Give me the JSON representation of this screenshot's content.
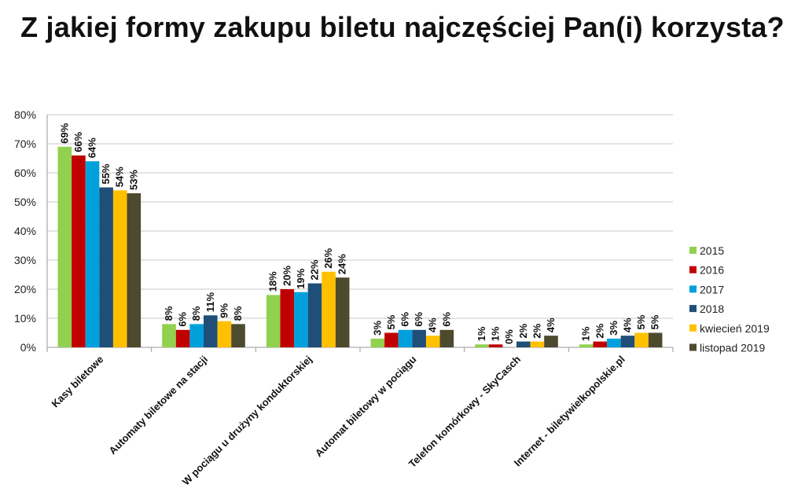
{
  "chart_data": {
    "type": "bar",
    "title": "Z jakiej formy zakupu biletu najczęściej Pan(i) korzysta?",
    "xlabel": "",
    "ylabel": "",
    "ylim": [
      0,
      80
    ],
    "y_unit": "%",
    "y_ticks": [
      "0%",
      "10%",
      "20%",
      "30%",
      "40%",
      "50%",
      "60%",
      "70%",
      "80%"
    ],
    "grid": true,
    "legend_position": "right",
    "categories": [
      "Kasy biletowe",
      "Automaty biletowe na stacji",
      "W pociągu u drużyny konduktorskiej",
      "Automat biletowy w pociągu",
      "Telefon komórkowy - SkyCasch",
      "Internet - biletywielkopolskie.pl"
    ],
    "series": [
      {
        "name": "2015",
        "color": "#92D050",
        "values": [
          69,
          8,
          18,
          3,
          1,
          1
        ]
      },
      {
        "name": "2016",
        "color": "#C00000",
        "values": [
          66,
          6,
          20,
          5,
          1,
          2
        ]
      },
      {
        "name": "2017",
        "color": "#00A0DC",
        "values": [
          64,
          8,
          19,
          6,
          0,
          3
        ]
      },
      {
        "name": "2018",
        "color": "#1F4E79",
        "values": [
          55,
          11,
          22,
          6,
          2,
          4
        ]
      },
      {
        "name": "kwiecień 2019",
        "color": "#FFC000",
        "values": [
          54,
          9,
          26,
          4,
          2,
          5
        ]
      },
      {
        "name": "listopad 2019",
        "color": "#4D4A2E",
        "values": [
          53,
          8,
          24,
          6,
          4,
          5
        ]
      }
    ]
  }
}
